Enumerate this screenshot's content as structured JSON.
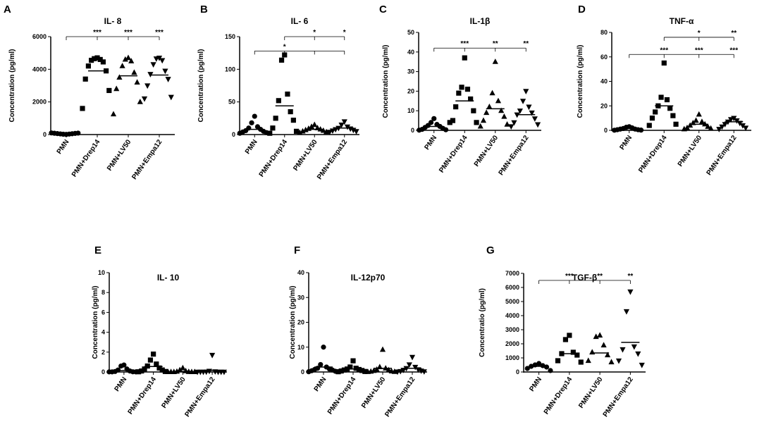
{
  "chart_data": [
    {
      "type": "scatter",
      "panel_label": "A",
      "title": "IL- 8",
      "ylabel": "Concentration (pg/ml)",
      "ylim": [
        0,
        6000
      ],
      "yticks": [
        0,
        2000,
        4000,
        6000
      ],
      "categories": [
        "PMN",
        "PMN+Drep14",
        "PMN+LV50",
        "PMN+Empa12"
      ],
      "markers": [
        "circle",
        "square",
        "triangle-up",
        "triangle-down"
      ],
      "points": [
        [
          10,
          20,
          30,
          40,
          50,
          60,
          70,
          80,
          90,
          100
        ],
        [
          4700,
          4650,
          4600,
          4550,
          4450,
          4200,
          3900,
          3400,
          2700,
          1600
        ],
        [
          4700,
          4600,
          4500,
          4200,
          3800,
          3500,
          3200,
          2800,
          2000,
          1250
        ],
        [
          4700,
          4650,
          4550,
          4300,
          3900,
          3700,
          3400,
          3000,
          2300,
          2200
        ]
      ],
      "means": [
        50,
        3900,
        3600,
        3650
      ],
      "significance": [
        {
          "from": 0,
          "to": [
            1,
            2,
            3
          ],
          "labels": [
            "***",
            "***",
            "***"
          ],
          "level": 6000
        }
      ]
    },
    {
      "type": "scatter",
      "panel_label": "B",
      "title": "IL- 6",
      "ylabel": "Concentration (pg/ml)",
      "ylim": [
        0,
        150
      ],
      "yticks": [
        0,
        50,
        100,
        150
      ],
      "categories": [
        "PMN",
        "PMN+Drep14",
        "PMN+LV50",
        "PMN+Empa12"
      ],
      "markers": [
        "circle",
        "square",
        "triangle-up",
        "triangle-down"
      ],
      "points": [
        [
          28,
          18,
          12,
          10,
          8,
          6,
          5,
          4,
          3,
          2
        ],
        [
          122,
          114,
          62,
          52,
          35,
          25,
          22,
          10,
          5,
          2
        ],
        [
          15,
          12,
          10,
          9,
          8,
          7,
          6,
          5,
          4,
          3
        ],
        [
          20,
          15,
          12,
          10,
          9,
          8,
          7,
          6,
          5,
          4
        ]
      ],
      "means": [
        8,
        44,
        8,
        10
      ],
      "significance": [
        {
          "from": 1,
          "to": [
            2,
            3
          ],
          "labels": [
            "*",
            "*"
          ],
          "level": 150
        },
        {
          "from": 0,
          "to": [
            1,
            2,
            3
          ],
          "labels": [
            "*",
            "",
            ""
          ],
          "level": 128
        }
      ]
    },
    {
      "type": "scatter",
      "panel_label": "C",
      "title": "IL-1β",
      "ylabel": "Concentration (pg/ml)",
      "ylim": [
        0,
        50
      ],
      "yticks": [
        0,
        10,
        20,
        30,
        40,
        50
      ],
      "categories": [
        "PMN",
        "PMN+Drep14",
        "PMN+LV50",
        "PMN+Empa12"
      ],
      "markers": [
        "circle",
        "square",
        "triangle-up",
        "triangle-down"
      ],
      "points": [
        [
          6,
          4,
          3,
          2.5,
          2,
          1.5,
          1,
          0.5,
          0.3,
          0.1
        ],
        [
          37,
          22,
          21,
          19,
          16,
          12,
          10,
          5,
          4,
          4
        ],
        [
          35,
          19,
          15,
          12,
          10,
          9,
          7,
          5,
          3,
          2
        ],
        [
          20,
          15,
          12,
          10,
          9,
          8,
          6,
          4,
          3,
          2
        ]
      ],
      "means": [
        2,
        15,
        11,
        8
      ],
      "significance": [
        {
          "from": 0,
          "to": [
            1,
            2,
            3
          ],
          "labels": [
            "***",
            "**",
            "**"
          ],
          "level": 42
        }
      ]
    },
    {
      "type": "scatter",
      "panel_label": "D",
      "title": "TNF-α",
      "ylabel": "Concentration (pg/ml)",
      "ylim": [
        0,
        80
      ],
      "yticks": [
        0,
        20,
        40,
        60,
        80
      ],
      "categories": [
        "PMN",
        "PMN+Drep14",
        "PMN+LV50",
        "PMN+Empa12"
      ],
      "markers": [
        "circle",
        "square",
        "triangle-up",
        "triangle-down"
      ],
      "points": [
        [
          3,
          2.5,
          2,
          1.5,
          1,
          1,
          0.5,
          0.5,
          0.2,
          0.1
        ],
        [
          55,
          27,
          25,
          20,
          18,
          15,
          12,
          10,
          5,
          4
        ],
        [
          13,
          8,
          7,
          6,
          5,
          4,
          3,
          2,
          1.5,
          1
        ],
        [
          10,
          9,
          8,
          7,
          6,
          5,
          4,
          3,
          2,
          1
        ]
      ],
      "means": [
        1.5,
        20,
        5,
        7
      ],
      "significance": [
        {
          "from": 1,
          "to": [
            2,
            3
          ],
          "labels": [
            "*",
            "**"
          ],
          "level": 76
        },
        {
          "from": 0,
          "to": [
            1,
            2,
            3
          ],
          "labels": [
            "***",
            "***",
            "***"
          ],
          "level": 62
        }
      ]
    },
    {
      "type": "scatter",
      "panel_label": "E",
      "title": "IL- 10",
      "ylabel": "Concentration (pg/ml)",
      "ylim": [
        0,
        10
      ],
      "yticks": [
        0,
        2,
        4,
        6,
        8,
        10
      ],
      "categories": [
        "PMN",
        "PMN+Drep14",
        "PMN+LV50",
        "PMN+Empa12"
      ],
      "markers": [
        "circle",
        "square",
        "triangle-up",
        "triangle-down"
      ],
      "points": [
        [
          0.7,
          0.6,
          0.3,
          0.2,
          0.1,
          0.05,
          0.02,
          0.01,
          0.01,
          0.01
        ],
        [
          1.8,
          1.2,
          0.8,
          0.6,
          0.4,
          0.3,
          0.2,
          0.1,
          0.05,
          0.02
        ],
        [
          0.4,
          0.2,
          0.1,
          0.05,
          0.02,
          0.01,
          0.01,
          0.01,
          0.01,
          0.01
        ],
        [
          1.7,
          0.1,
          0.05,
          0.02,
          0.01,
          0.01,
          0.01,
          0.01,
          0.01,
          0.01
        ]
      ],
      "means": [
        0.15,
        0.55,
        0.05,
        0.15
      ],
      "significance": []
    },
    {
      "type": "scatter",
      "panel_label": "F",
      "title": "IL-12p70",
      "ylabel": "Concentration (pg/ml)",
      "ylim": [
        0,
        40
      ],
      "yticks": [
        0,
        10,
        20,
        30,
        40
      ],
      "categories": [
        "PMN",
        "PMN+Drep14",
        "PMN+LV50",
        "PMN+Empa12"
      ],
      "markers": [
        "circle",
        "square",
        "triangle-up",
        "triangle-down"
      ],
      "points": [
        [
          10,
          3,
          2,
          1.5,
          1.2,
          1,
          0.8,
          0.5,
          0.3,
          0.1
        ],
        [
          4.5,
          2,
          1.5,
          1.2,
          1,
          0.8,
          0.6,
          0.4,
          0.2,
          0.1
        ],
        [
          9,
          2,
          1.5,
          1,
          0.8,
          0.5,
          0.3,
          0.2,
          0.1,
          0.05
        ],
        [
          6,
          3,
          2,
          1.5,
          1,
          0.8,
          0.5,
          0.3,
          0.2,
          0.1
        ]
      ],
      "means": [
        2,
        1.2,
        1.5,
        1.5
      ],
      "significance": []
    },
    {
      "type": "scatter",
      "panel_label": "G",
      "title": "TGF-β",
      "ylabel": "Concentratio (pg/ml)",
      "ylim": [
        0,
        7000
      ],
      "yticks": [
        0,
        1000,
        2000,
        3000,
        4000,
        5000,
        6000,
        7000
      ],
      "categories": [
        "PMN",
        "PMN+Drep14",
        "PMN+LV50",
        "PMN+Empa12"
      ],
      "markers": [
        "circle",
        "square",
        "triangle-up",
        "triangle-down"
      ],
      "points": [
        [
          600,
          500,
          450,
          400,
          350,
          250,
          100
        ],
        [
          2600,
          2300,
          1400,
          1300,
          1200,
          800,
          700
        ],
        [
          2600,
          2500,
          1900,
          1400,
          1200,
          800,
          700
        ],
        [
          5700,
          4300,
          1800,
          1600,
          1300,
          800,
          500
        ]
      ],
      "means": [
        400,
        1300,
        1350,
        2100
      ],
      "significance": [
        {
          "from": 0,
          "to": [
            1,
            2,
            3
          ],
          "labels": [
            "***",
            "**",
            "**"
          ],
          "level": 6500
        }
      ]
    }
  ]
}
